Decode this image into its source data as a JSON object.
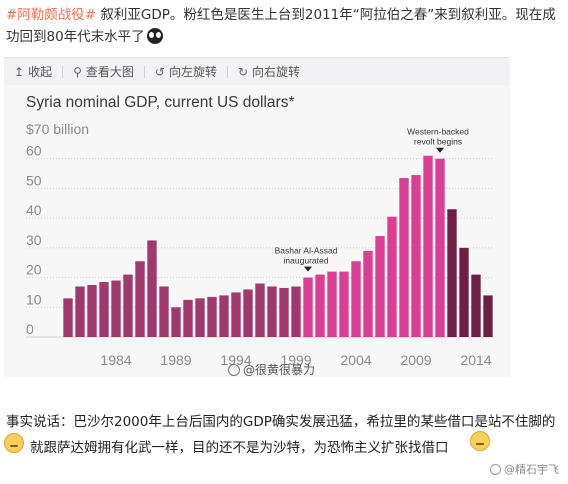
{
  "post": {
    "hashtag": "#阿勒颇战役#",
    "text": " 叙利亚GDP。粉红色是医生上台到2011年“阿拉伯之春”来到叙利亚。现在成功回到80年代末水平了"
  },
  "toolbar": {
    "collapse_label": "收起",
    "view_large_label": "查看大图",
    "rotate_left_label": "向左旋转",
    "rotate_right_label": "向右旋转"
  },
  "chart_data": {
    "type": "bar",
    "title": "Syria nominal GDP, current US dollars*",
    "y_unit_label": "$70 billion",
    "ylim": [
      0,
      70
    ],
    "yticks": [
      0,
      10,
      20,
      30,
      40,
      50,
      60
    ],
    "xtick_labels": [
      "1984",
      "1989",
      "1994",
      "1999",
      "2004",
      "2009",
      "2014"
    ],
    "x": [
      1980,
      1981,
      1982,
      1983,
      1984,
      1985,
      1986,
      1987,
      1988,
      1989,
      1990,
      1991,
      1992,
      1993,
      1994,
      1995,
      1996,
      1997,
      1998,
      1999,
      2000,
      2001,
      2002,
      2003,
      2004,
      2005,
      2006,
      2007,
      2008,
      2009,
      2010,
      2011,
      2012,
      2013,
      2014,
      2015
    ],
    "values": [
      13,
      17,
      17.5,
      18.5,
      19,
      21,
      25.5,
      32.5,
      17,
      10,
      12.5,
      13,
      13.5,
      14,
      15,
      16,
      18,
      17,
      16.5,
      17,
      20,
      21,
      22,
      22,
      25.5,
      29,
      34,
      40.5,
      53.5,
      54.5,
      61,
      60,
      43,
      30,
      21,
      14
    ],
    "colors": {
      "assad_father": "#9e3a6e",
      "assad_son": "#d93f93",
      "post_2011": "#6d1f48",
      "grid": "#cfcfcf",
      "axis_text": "#8a8a8a"
    },
    "annotations": [
      {
        "text_lines": [
          "Bashar Al-Assad",
          "inaugurated"
        ],
        "year": 2000
      },
      {
        "text_lines": [
          "Western-backed",
          "revolt begins"
        ],
        "year": 2011
      }
    ]
  },
  "watermark": "@很黄很暴力",
  "comment": {
    "line1": "事实说话：巴沙尔2000年上台后国内的GDP确实发展迅猛，希拉里的某些借口是站不住脚的",
    "line2": "就跟萨达姆拥有化武一样，目的还不是为沙特，为恐怖主义扩张找借口"
  },
  "watermark2": "@精石宇飞"
}
